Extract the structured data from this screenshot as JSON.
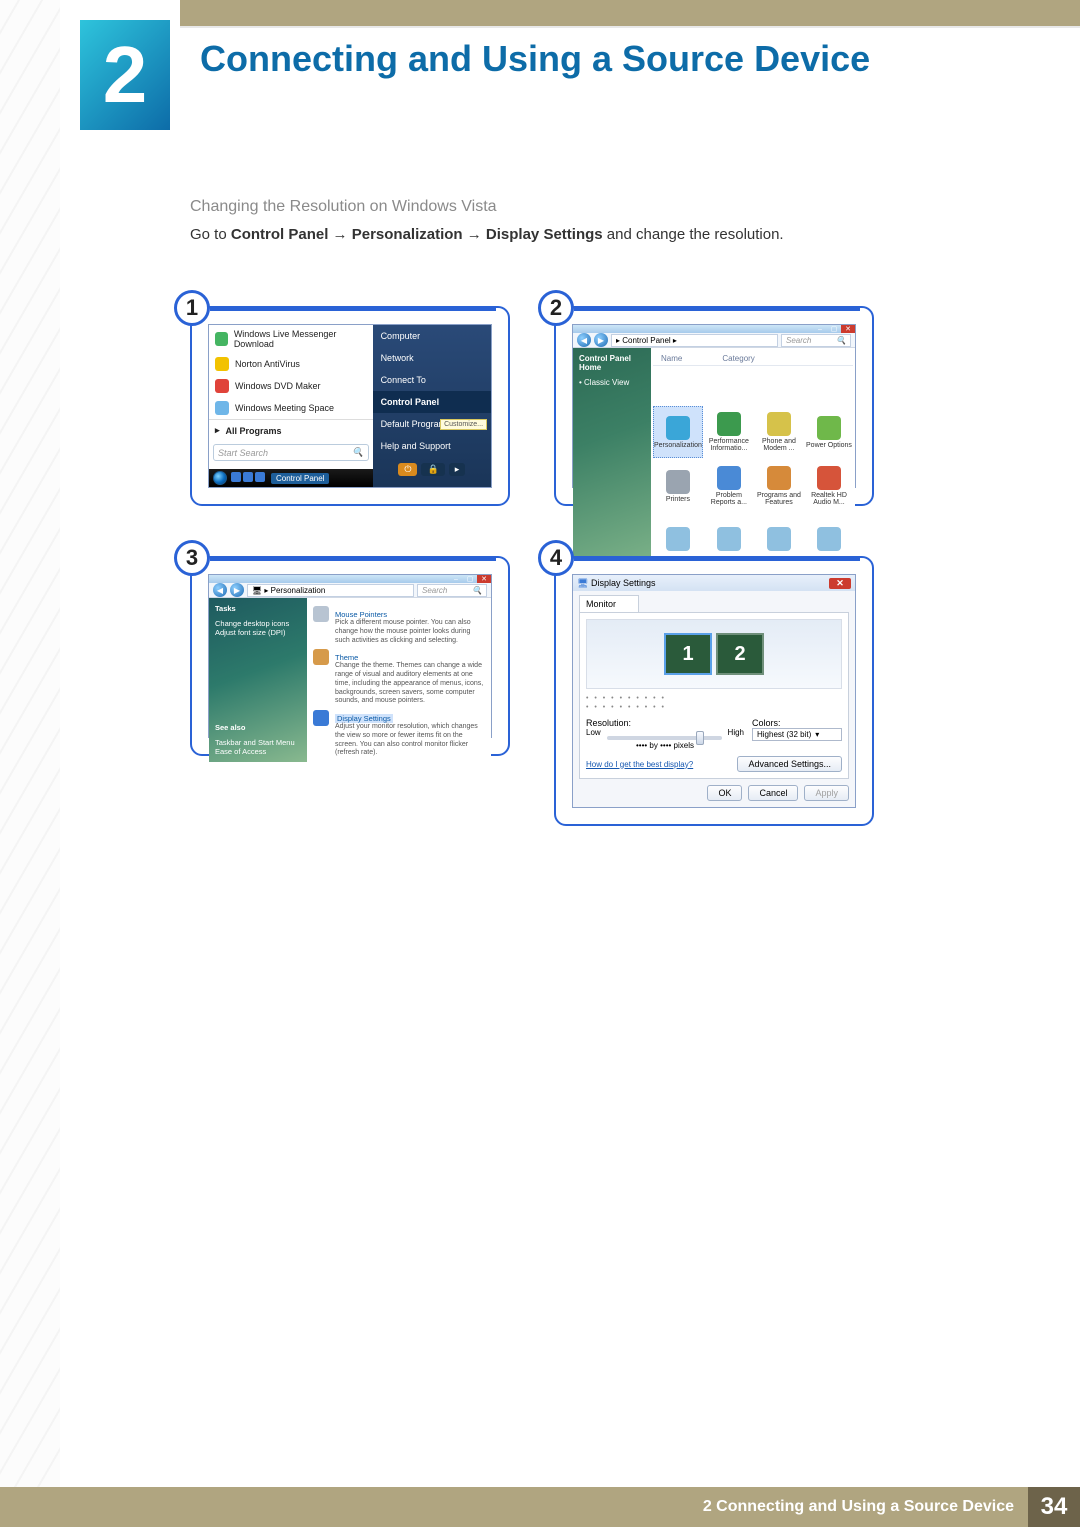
{
  "page": {
    "chapter_number": "2",
    "chapter_title": "Connecting and Using a Source Device",
    "subheading": "Changing the Resolution on Windows Vista",
    "instruction_pre": "Go to ",
    "instruction_b1": "Control Panel",
    "instruction_b2": "Personalization",
    "instruction_b3": "Display Settings",
    "instruction_post": " and change the resolution.",
    "arrow": " → ",
    "footer_text": "2 Connecting and Using a Source Device",
    "page_number": "34"
  },
  "colors": {
    "accent_blue": "#0d6ca8",
    "step_border": "#2a62d6",
    "khaki": "#b0a580",
    "khaki_dark": "#6d634a",
    "vista_dark": "#1a3558",
    "vista_green_grad": "#2d7a6b"
  },
  "steps": {
    "s1": {
      "badge": "1",
      "left_items": [
        {
          "icon_color": "#45b562",
          "label": "Windows Live Messenger Download"
        },
        {
          "icon_color": "#f2c200",
          "label": "Norton AntiVirus"
        },
        {
          "icon_color": "#e0433a",
          "label": "Windows DVD Maker"
        },
        {
          "icon_color": "#6fb6e8",
          "label": "Windows Meeting Space"
        }
      ],
      "all_programs": "All Programs",
      "all_prog_arrow": "▸",
      "search_placeholder": "Start Search",
      "search_icon": "🔍",
      "right_items": [
        "Computer",
        "Network",
        "Connect To",
        "Control Panel",
        "Default Programs",
        "Help and Support"
      ],
      "highlight_item": "Control Panel",
      "tooltip": "Customize...",
      "taskbar_label": "Control Panel",
      "tb_icons": [
        "🟦",
        "🟩",
        "🟧"
      ]
    },
    "s2": {
      "badge": "2",
      "breadcrumb": "▸ Control Panel ▸",
      "search_placeholder": "Search",
      "side_items": [
        "Control Panel Home",
        "Classic View"
      ],
      "col_headers": [
        "Name",
        "Category"
      ],
      "items": [
        {
          "label": "Personalization",
          "color": "#3aa6d8",
          "selected": true
        },
        {
          "label": "Performance Informatio...",
          "color": "#3c9a4e"
        },
        {
          "label": "Phone and Modem ...",
          "color": "#d6c24a"
        },
        {
          "label": "Power Options",
          "color": "#6fb84a"
        },
        {
          "label": "Printers",
          "color": "#9aa4b0"
        },
        {
          "label": "Problem Reports a...",
          "color": "#4a8ad6"
        },
        {
          "label": "Programs and Features",
          "color": "#d68a3a"
        },
        {
          "label": "Realtek HD Audio M...",
          "color": "#d6543a"
        }
      ],
      "extra_row_color": "#8fc0e0"
    },
    "s3": {
      "badge": "3",
      "breadcrumb": "🖥 ▸ Personalization",
      "search_placeholder": "Search",
      "side_hdr": "Tasks",
      "side_items": [
        "Change desktop icons",
        "Adjust font size (DPI)"
      ],
      "see_also": "See also",
      "see_also_items": [
        "Taskbar and Start Menu",
        "Ease of Access"
      ],
      "sections": [
        {
          "title": "Mouse Pointers",
          "icon": "#b8c4d2",
          "desc": "Pick a different mouse pointer. You can also change how the mouse pointer looks during such activities as clicking and selecting."
        },
        {
          "title": "Theme",
          "icon": "#d69a4a",
          "desc": "Change the theme. Themes can change a wide range of visual and auditory elements at one time, including the appearance of menus, icons, backgrounds, screen savers, some computer sounds, and mouse pointers."
        },
        {
          "title": "Display Settings",
          "icon": "#3a7ad6",
          "desc": "Adjust your monitor resolution, which changes the view so more or fewer items fit on the screen. You can also control monitor flicker (refresh rate).",
          "selected": true
        }
      ]
    },
    "s4": {
      "badge": "4",
      "title": "Display Settings",
      "tab": "Monitor",
      "mon1": "1",
      "mon2": "2",
      "dots_line": "• • • • • • • • • •",
      "res_label": "Resolution:",
      "low": "Low",
      "high": "High",
      "pixels_text": "•••• by •••• pixels",
      "colors_label": "Colors:",
      "colors_value": "Highest (32 bit)",
      "dropdown_arrow": "▾",
      "link": "How do I get the best display?",
      "adv_btn": "Advanced Settings...",
      "ok": "OK",
      "cancel": "Cancel",
      "apply": "Apply"
    }
  }
}
